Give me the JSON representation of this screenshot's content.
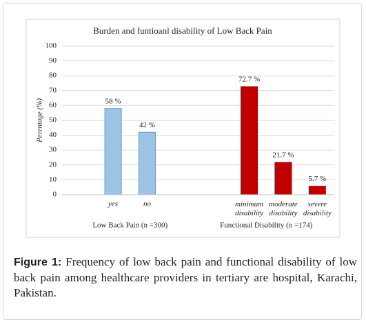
{
  "chart_data": {
    "type": "bar",
    "title": "Burden and funtioanl disability of Low Back Pain",
    "ylabel": "Perentage (%)",
    "categories": [
      null,
      "yes",
      "no",
      null,
      null,
      "minimum disability",
      "moderate disability",
      "severe disability"
    ],
    "values": [
      null,
      58,
      42,
      null,
      null,
      72.7,
      21.7,
      5.7
    ],
    "value_labels": [
      null,
      "58 %",
      "42 %",
      null,
      null,
      "72.7 %",
      "21.7 %",
      "5.7 %"
    ],
    "colors": [
      null,
      "#9dc3e6",
      "#9dc3e6",
      null,
      null,
      "#c00000",
      "#c00000",
      "#c00000"
    ],
    "group_labels": [
      "Low Back Pain  (n =300)",
      "Functional Disability (n =174)"
    ],
    "ylim": [
      0,
      100
    ],
    "yticks": [
      0,
      10,
      20,
      30,
      40,
      50,
      60,
      70,
      80,
      90,
      100
    ],
    "grid": true
  },
  "caption": {
    "label": "Figure 1:",
    "text": "Frequency of low back pain and functional disability of low back pain among healthcare providers in tertiary are hospital, Karachi, Pakistan."
  }
}
